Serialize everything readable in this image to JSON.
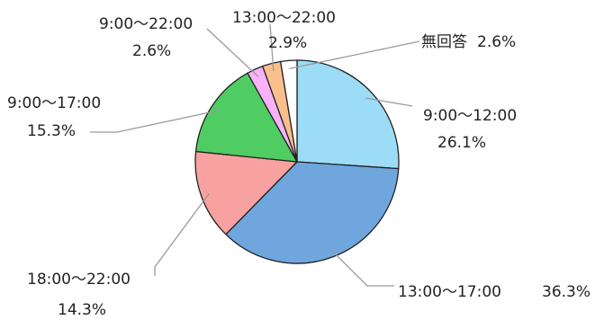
{
  "chart_data": {
    "type": "pie",
    "title": "",
    "start_angle_deg": 0,
    "direction": "clockwise",
    "slices": [
      {
        "label": "9:00〜12:00",
        "value": 26.1,
        "value_label": "26.1%",
        "color": "#9ddcf6"
      },
      {
        "label": "13:00〜17:00",
        "value": 36.3,
        "value_label": "36.3%",
        "color": "#6fa6de"
      },
      {
        "label": "18:00〜22:00",
        "value": 14.3,
        "value_label": "14.3%",
        "color": "#f7a1a1"
      },
      {
        "label": "9:00〜17:00",
        "value": 15.3,
        "value_label": "15.3%",
        "color": "#4fcd63"
      },
      {
        "label": "9:00〜22:00",
        "value": 2.6,
        "value_label": "2.6%",
        "color": "#f9b2f9"
      },
      {
        "label": "13:00〜22:00",
        "value": 2.9,
        "value_label": "2.9%",
        "color": "#f9c08e"
      },
      {
        "label": "無回答",
        "value": 2.6,
        "value_label": "2.6%",
        "color": "#ffffff"
      }
    ]
  }
}
